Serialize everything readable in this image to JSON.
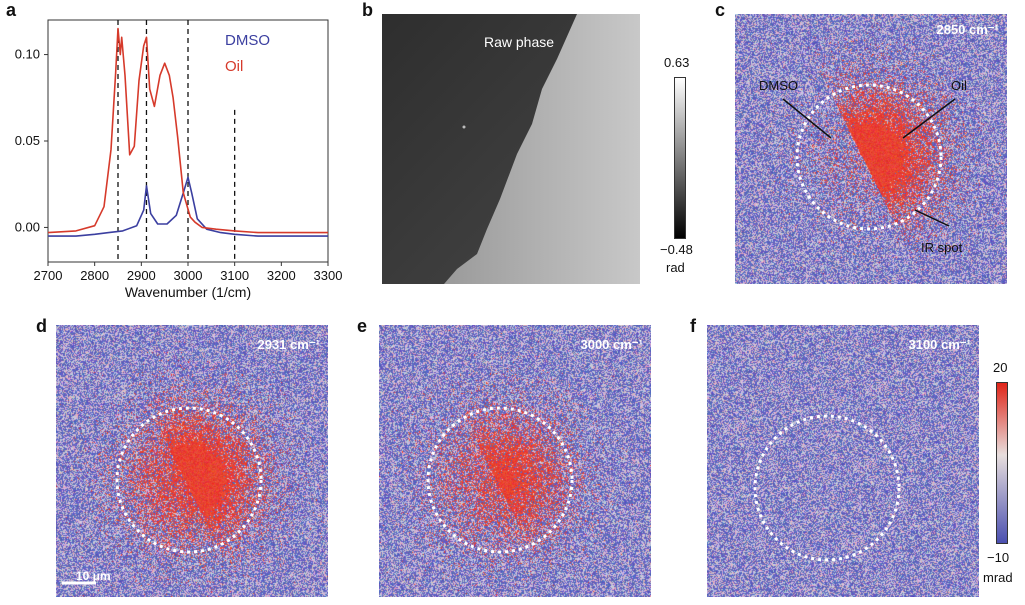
{
  "panel_labels": {
    "a": "a",
    "b": "b",
    "c": "c",
    "d": "d",
    "e": "e",
    "f": "f"
  },
  "chart_data": [
    {
      "type": "line",
      "xlabel": "Wavenumber (1/cm)",
      "ylabel": "",
      "xlim": [
        2700,
        3300
      ],
      "ylim": [
        -0.02,
        0.12
      ],
      "xticks": [
        "2700",
        "2800",
        "2900",
        "3000",
        "3100",
        "3200",
        "3300"
      ],
      "yticks": [
        "0.00",
        "0.05",
        "0.10"
      ],
      "vlines": [
        2850,
        2911,
        3000,
        3100
      ],
      "legend_placement": "top-right",
      "series": [
        {
          "name": "DMSO",
          "color": "#3b3fa0",
          "x": [
            2700,
            2760,
            2800,
            2830,
            2860,
            2890,
            2905,
            2911,
            2920,
            2935,
            2955,
            2975,
            2990,
            3000,
            3008,
            3020,
            3040,
            3070,
            3100,
            3150,
            3200,
            3250,
            3300
          ],
          "y": [
            -0.005,
            -0.005,
            -0.004,
            -0.003,
            -0.002,
            0.001,
            0.01,
            0.024,
            0.008,
            0.002,
            0.002,
            0.007,
            0.02,
            0.029,
            0.02,
            0.005,
            -0.001,
            -0.003,
            -0.004,
            -0.005,
            -0.005,
            -0.005,
            -0.005
          ]
        },
        {
          "name": "Oil",
          "color": "#d63a2b",
          "x": [
            2700,
            2760,
            2800,
            2820,
            2835,
            2845,
            2850,
            2855,
            2858,
            2865,
            2875,
            2885,
            2895,
            2905,
            2911,
            2918,
            2928,
            2940,
            2950,
            2960,
            2968,
            2978,
            2990,
            3005,
            3015,
            3030,
            3060,
            3100,
            3150,
            3200,
            3250,
            3300
          ],
          "y": [
            -0.003,
            -0.002,
            0.001,
            0.012,
            0.045,
            0.09,
            0.115,
            0.1,
            0.11,
            0.088,
            0.042,
            0.047,
            0.085,
            0.105,
            0.11,
            0.08,
            0.07,
            0.088,
            0.095,
            0.088,
            0.075,
            0.052,
            0.02,
            0.006,
            0.003,
            0.0,
            -0.001,
            -0.002,
            -0.003,
            -0.003,
            -0.003,
            -0.003
          ]
        }
      ]
    },
    {
      "type": "heatmap",
      "title": "Raw phase",
      "colorbar": {
        "max": "0.63",
        "min": "−0.48",
        "unit": "rad"
      }
    },
    {
      "type": "heatmap",
      "panels": [
        {
          "id": "c",
          "label": "2850 cm⁻¹",
          "intensity": 0.95,
          "half_split": true
        },
        {
          "id": "d",
          "label": "2931 cm⁻¹",
          "intensity": 1.0,
          "half_split": false
        },
        {
          "id": "e",
          "label": "3000 cm⁻¹",
          "intensity": 0.7,
          "half_split": false
        },
        {
          "id": "f",
          "label": "3100 cm⁻¹",
          "intensity": 0.0,
          "half_split": false
        }
      ],
      "annotations": {
        "dmso": "DMSO",
        "oil": "Oil",
        "ir_spot": "IR spot"
      },
      "colorbar": {
        "max": "20",
        "min": "−10",
        "unit": "mrad"
      },
      "scale_bar": "10 μm"
    }
  ],
  "colors": {
    "low": "#4a4fb0",
    "mid": "#d8d4de",
    "high": "#e02418"
  }
}
